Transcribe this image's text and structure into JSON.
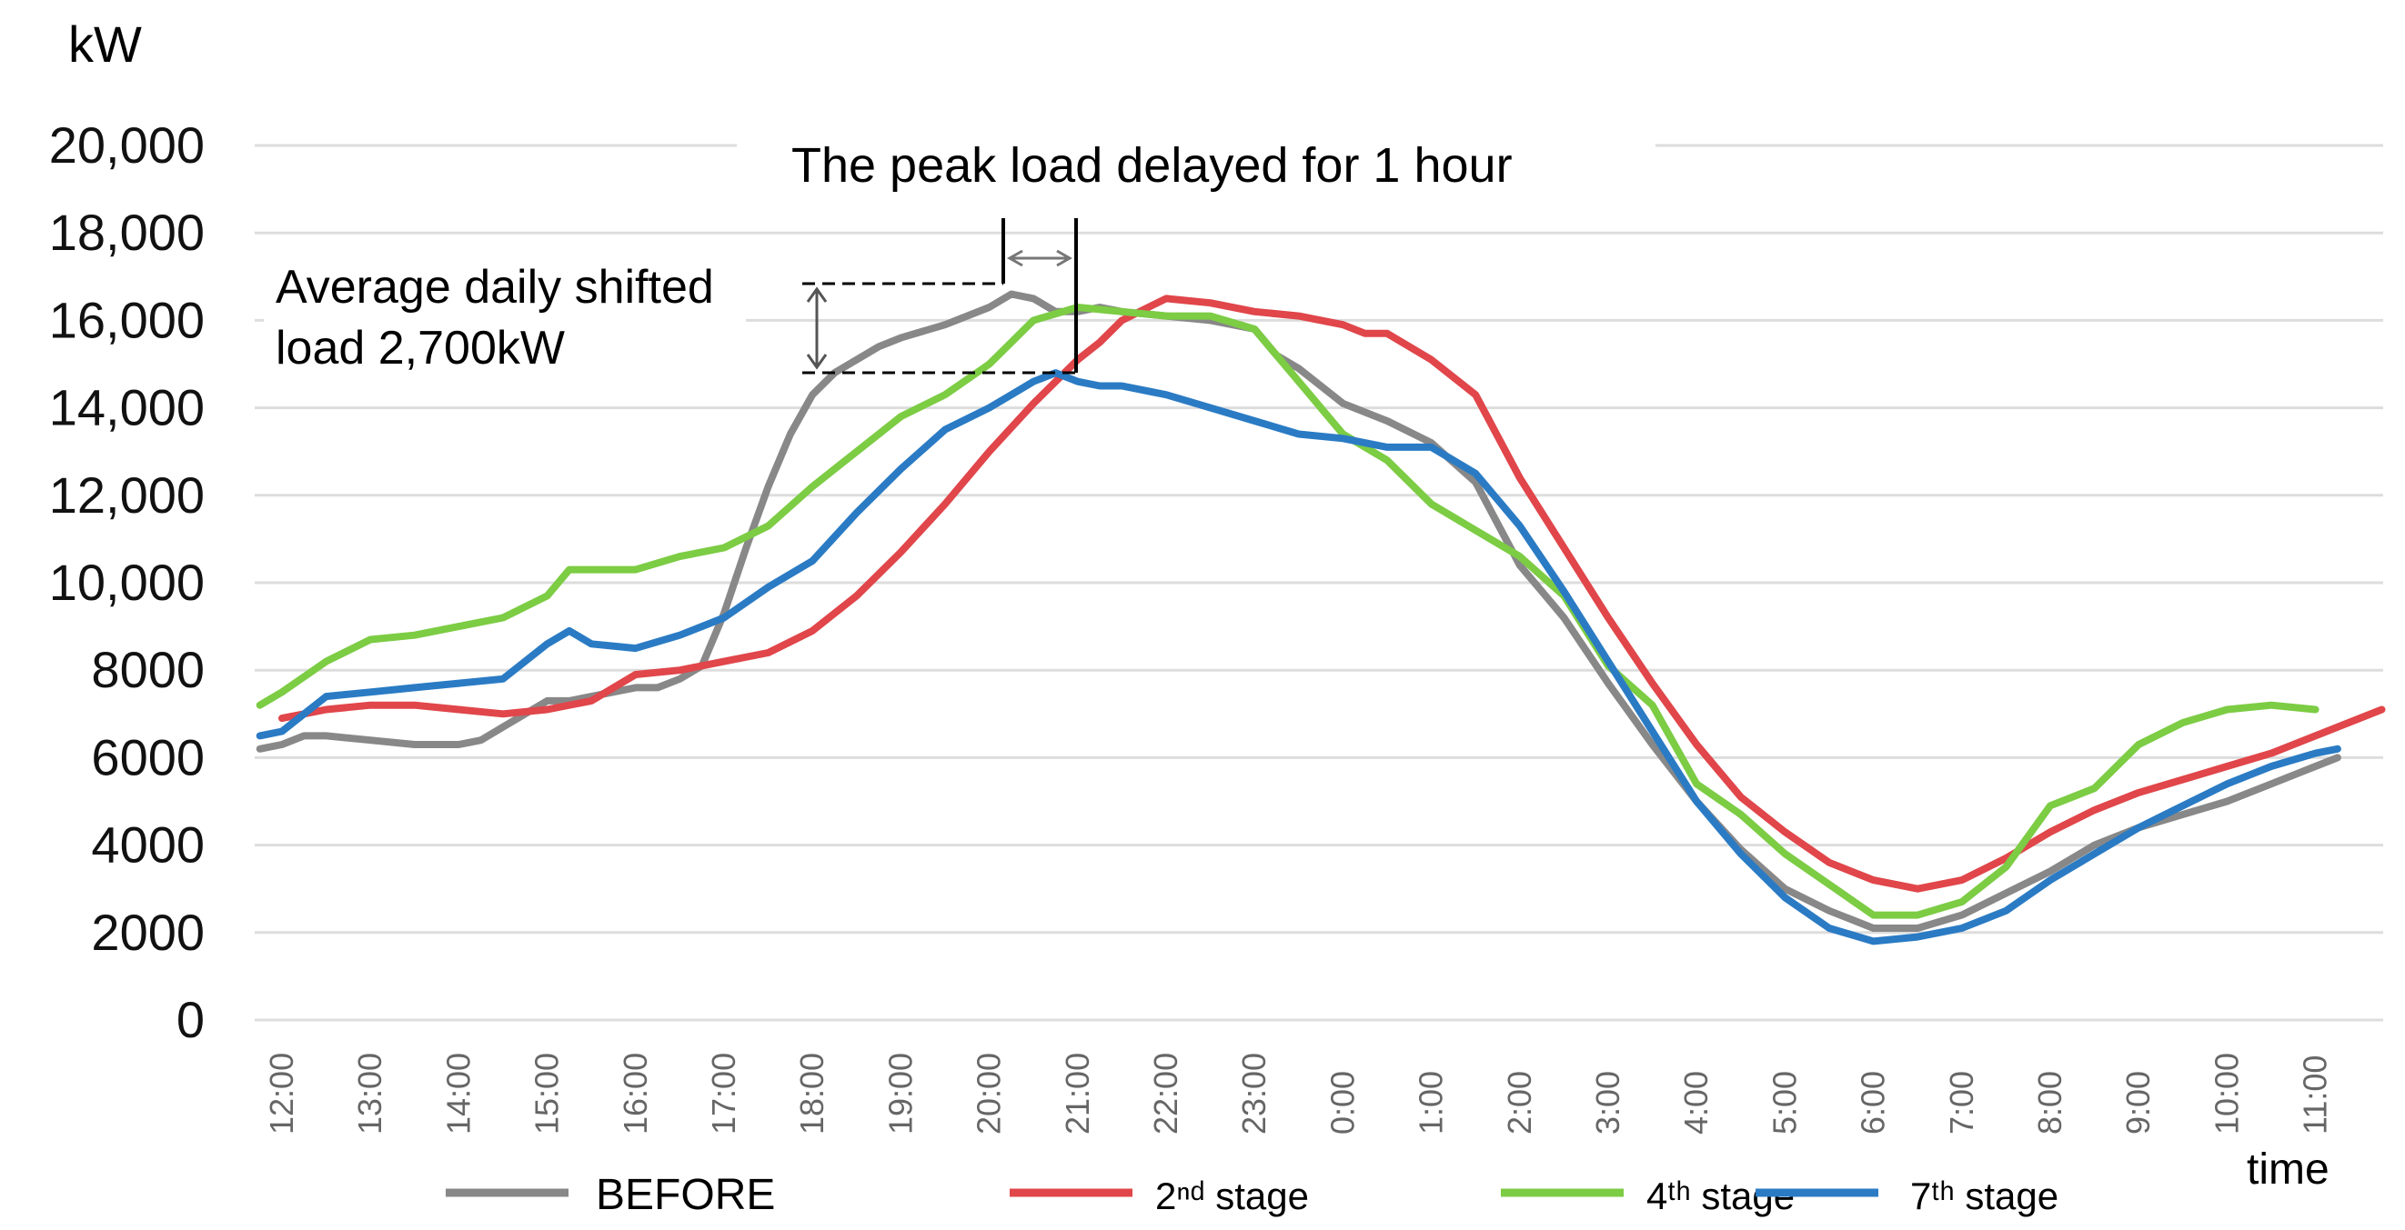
{
  "chart_data": {
    "type": "line",
    "ylabel": "kW",
    "xlabel": "time",
    "ylim": [
      0,
      20000
    ],
    "ytick_labels": [
      "0",
      "2000",
      "4000",
      "6000",
      "8000",
      "10,000",
      "12,000",
      "14,000",
      "16,000",
      "18,000",
      "20,000"
    ],
    "categories": [
      "12:00",
      "13:00",
      "14:00",
      "15:00",
      "16:00",
      "17:00",
      "18:00",
      "19:00",
      "20:00",
      "21:00",
      "22:00",
      "23:00",
      "0:00",
      "1:00",
      "2:00",
      "3:00",
      "4:00",
      "5:00",
      "6:00",
      "7:00",
      "8:00",
      "9:00",
      "10:00",
      "11:00"
    ],
    "series": [
      {
        "name": "BEFORE",
        "color": "#888888",
        "x": [
          -0.25,
          0,
          0.25,
          0.5,
          1,
          1.5,
          2,
          2.25,
          2.5,
          2.75,
          3,
          3.25,
          3.5,
          4,
          4.25,
          4.5,
          4.75,
          5,
          5.25,
          5.5,
          5.75,
          6,
          6.25,
          6.5,
          6.75,
          7,
          7.5,
          8,
          8.25,
          8.5,
          8.75,
          9,
          9.25,
          9.5,
          10,
          10.5,
          11,
          11.25,
          11.5,
          11.75,
          12,
          12.5,
          13,
          13.5,
          14,
          14.25,
          14.5,
          15,
          15.5,
          16,
          16.5,
          17,
          17.5,
          18,
          18.5,
          19,
          19.5,
          20,
          20.5,
          21,
          21.5,
          22,
          22.5,
          23,
          23.25
        ],
        "y": [
          6200,
          6300,
          6500,
          6500,
          6400,
          6300,
          6300,
          6400,
          6700,
          7000,
          7300,
          7300,
          7400,
          7600,
          7600,
          7800,
          8100,
          9300,
          10800,
          12200,
          13400,
          14300,
          14800,
          15100,
          15400,
          15600,
          15900,
          16300,
          16600,
          16500,
          16200,
          16200,
          16300,
          16200,
          16100,
          16000,
          15800,
          15200,
          14900,
          14500,
          14100,
          13700,
          13200,
          12300,
          10400,
          9800,
          9200,
          7700,
          6300,
          5000,
          3900,
          3000,
          2500,
          2100,
          2100,
          2400,
          2900,
          3400,
          4000,
          4400,
          4700,
          5000,
          5400,
          5800,
          6000
        ]
      },
      {
        "name": "2ⁿᵈ stage",
        "color": "#e0464a",
        "x": [
          0,
          0.5,
          1,
          1.5,
          2,
          2.5,
          3,
          3.5,
          4,
          4.5,
          5,
          5.5,
          6,
          6.5,
          7,
          7.5,
          8,
          8.5,
          9,
          9.25,
          9.5,
          10,
          10.5,
          11,
          11.5,
          12,
          12.25,
          12.5,
          13,
          13.5,
          14,
          14.5,
          15,
          15.5,
          16,
          16.5,
          17,
          17.5,
          18,
          18.5,
          19,
          19.5,
          20,
          20.5,
          21,
          21.5,
          22,
          22.5,
          23,
          23.5,
          23.75
        ],
        "y": [
          6900,
          7100,
          7200,
          7200,
          7100,
          7000,
          7100,
          7300,
          7900,
          8000,
          8200,
          8400,
          8900,
          9700,
          10700,
          11800,
          13000,
          14100,
          15100,
          15500,
          16000,
          16500,
          16400,
          16200,
          16100,
          15900,
          15700,
          15700,
          15100,
          14300,
          12400,
          10800,
          9200,
          7700,
          6300,
          5100,
          4300,
          3600,
          3200,
          3000,
          3200,
          3700,
          4300,
          4800,
          5200,
          5500,
          5800,
          6100,
          6500,
          6900,
          7100
        ]
      },
      {
        "name": "4ᵗʰ stage",
        "color": "#7ccc44",
        "x": [
          -0.25,
          0,
          0.5,
          1,
          1.5,
          2,
          2.5,
          3,
          3.25,
          3.5,
          4,
          4.5,
          5,
          5.5,
          6,
          6.5,
          7,
          7.5,
          8,
          8.25,
          8.5,
          9,
          9.5,
          10,
          10.5,
          11,
          11.25,
          11.5,
          12,
          12.5,
          13,
          13.5,
          14,
          14.5,
          15,
          15.5,
          16,
          16.5,
          17,
          17.5,
          18,
          18.5,
          19,
          19.5,
          20,
          20.5,
          21,
          21.5,
          22,
          22.5,
          23
        ],
        "y": [
          7200,
          7500,
          8200,
          8700,
          8800,
          9000,
          9200,
          9700,
          10300,
          10300,
          10300,
          10600,
          10800,
          11300,
          12200,
          13000,
          13800,
          14300,
          15000,
          15500,
          16000,
          16300,
          16200,
          16100,
          16100,
          15800,
          15200,
          14600,
          13400,
          12800,
          11800,
          11200,
          10600,
          9700,
          8100,
          7200,
          5400,
          4700,
          3800,
          3100,
          2400,
          2400,
          2700,
          3500,
          4900,
          5300,
          6300,
          6800,
          7100,
          7200,
          7100
        ]
      },
      {
        "name": "7ᵗʰ stage",
        "color": "#2a7bc4",
        "x": [
          -0.25,
          0,
          0.5,
          1,
          1.5,
          2,
          2.5,
          3,
          3.25,
          3.5,
          4,
          4.5,
          5,
          5.5,
          6,
          6.5,
          7,
          7.5,
          8,
          8.25,
          8.5,
          8.75,
          9,
          9.25,
          9.5,
          10,
          10.5,
          11,
          11.5,
          12,
          12.5,
          13,
          13.5,
          14,
          14.5,
          15,
          15.5,
          16,
          16.5,
          17,
          17.5,
          18,
          18.5,
          19,
          19.5,
          20,
          20.5,
          21,
          21.5,
          22,
          22.5,
          23,
          23.25
        ],
        "y": [
          6500,
          6600,
          7400,
          7500,
          7600,
          7700,
          7800,
          8600,
          8900,
          8600,
          8500,
          8800,
          9200,
          9900,
          10500,
          11600,
          12600,
          13500,
          14000,
          14300,
          14600,
          14800,
          14600,
          14500,
          14500,
          14300,
          14000,
          13700,
          13400,
          13300,
          13100,
          13100,
          12500,
          11300,
          9800,
          8200,
          6600,
          5000,
          3800,
          2800,
          2100,
          1800,
          1900,
          2100,
          2500,
          3200,
          3800,
          4400,
          4900,
          5400,
          5800,
          6100,
          6200
        ]
      }
    ],
    "annotations": {
      "peak_delay": "The peak load delayed for 1 hour",
      "shift_line1": "Average daily shifted",
      "shift_line2": "load 2,700kW"
    }
  }
}
